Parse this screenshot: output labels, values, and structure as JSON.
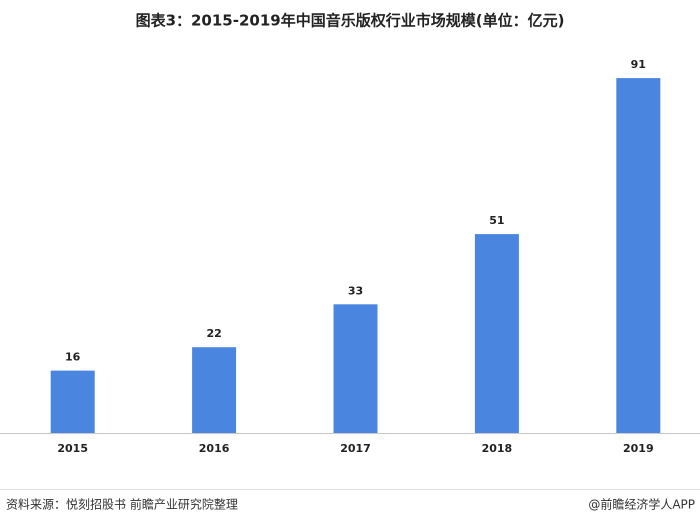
{
  "chart_data": {
    "type": "bar",
    "title": "图表3：2015-2019年中国音乐版权行业市场规模(单位：亿元)",
    "categories": [
      "2015",
      "2016",
      "2017",
      "2018",
      "2019"
    ],
    "values": [
      16,
      22,
      33,
      51,
      91
    ],
    "color": "#4a86e0"
  },
  "footer": {
    "source": "资料来源：悦刻招股书 前瞻产业研究院整理",
    "credit": "@前瞻经济学人APP"
  }
}
